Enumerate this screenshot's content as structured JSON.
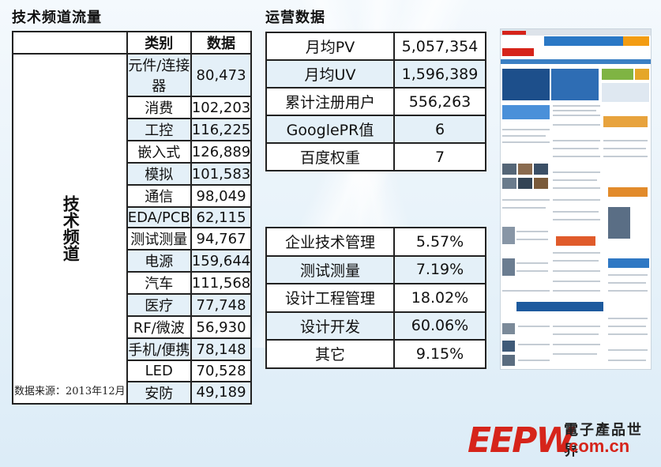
{
  "left_section": {
    "title": "技术频道流量",
    "header_category": "类别",
    "header_value": "数据",
    "group_label": "技术频道",
    "rows": [
      {
        "category": "元件/连接器",
        "value": "80,473"
      },
      {
        "category": "消费",
        "value": "102,203"
      },
      {
        "category": "工控",
        "value": "116,225"
      },
      {
        "category": "嵌入式",
        "value": "126,889"
      },
      {
        "category": "模拟",
        "value": "101,583"
      },
      {
        "category": "通信",
        "value": "98,049"
      },
      {
        "category": "EDA/PCB",
        "value": "62,115"
      },
      {
        "category": "测试测量",
        "value": "94,767"
      },
      {
        "category": "电源",
        "value": "159,644"
      },
      {
        "category": "汽车",
        "value": "111,568"
      },
      {
        "category": "医疗",
        "value": "77,748"
      },
      {
        "category": "RF/微波",
        "value": "56,930"
      },
      {
        "category": "手机/便携",
        "value": "78,148"
      },
      {
        "category": "LED",
        "value": "70,528"
      },
      {
        "category": "安防",
        "value": "49,189"
      }
    ],
    "source": "数据来源：2013年12月"
  },
  "ops_section": {
    "title": "运营数据",
    "rows": [
      {
        "label": "月均PV",
        "value": "5,057,354"
      },
      {
        "label": "月均UV",
        "value": "1,596,389"
      },
      {
        "label": "累计注册用户",
        "value": "556,263"
      },
      {
        "label": "GooglePR值",
        "value": "6"
      },
      {
        "label": "百度权重",
        "value": "7"
      }
    ]
  },
  "share_section": {
    "rows": [
      {
        "label": "企业技术管理",
        "value": "5.57%"
      },
      {
        "label": "测试测量",
        "value": "7.19%"
      },
      {
        "label": "设计工程管理",
        "value": "18.02%"
      },
      {
        "label": "设计开发",
        "value": "60.06%"
      },
      {
        "label": "其它",
        "value": "9.15%"
      }
    ]
  },
  "logo": {
    "mark": "EEPW",
    "chinese": "電子產品世界",
    "url": ".com.cn"
  },
  "colors": {
    "row_tint": "#e4f0f8",
    "brand_red": "#d6241a",
    "background": "#e9f3fa"
  }
}
